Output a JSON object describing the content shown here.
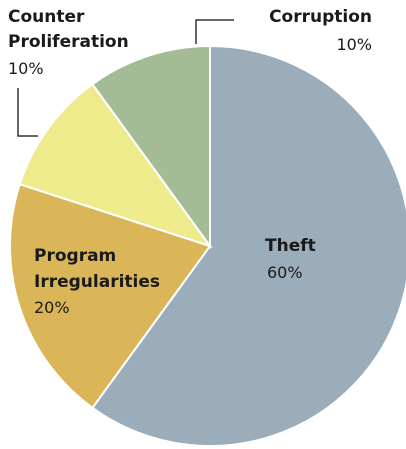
{
  "chart_data": {
    "type": "pie",
    "start_angle_deg": 0,
    "direction": "clockwise",
    "slices": [
      {
        "label": "Theft",
        "value": 60,
        "value_label": "60%",
        "color": "#9badbb"
      },
      {
        "label_lines": [
          "Program",
          "Irregularities"
        ],
        "value": 20,
        "value_label": "20%",
        "color": "#dbb659"
      },
      {
        "label_lines": [
          "Counter",
          "Proliferation"
        ],
        "value": 10,
        "value_label": "10%",
        "color": "#eeeb8d"
      },
      {
        "label": "Corruption",
        "value": 10,
        "value_label": "10%",
        "color": "#a3bc96"
      }
    ]
  }
}
